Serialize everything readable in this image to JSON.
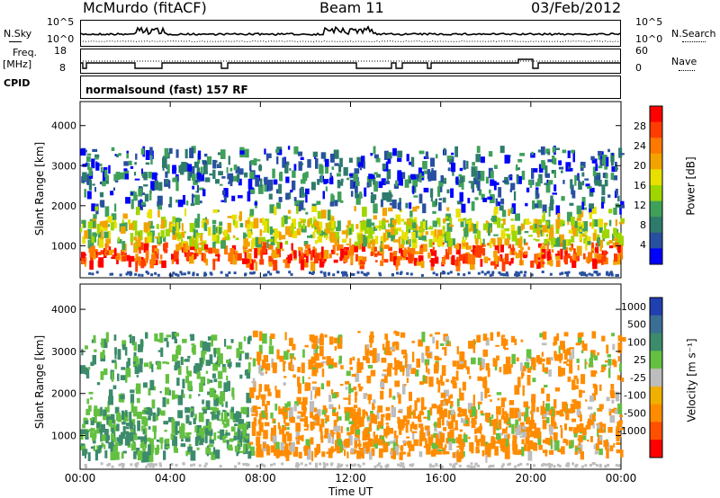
{
  "header": {
    "station": "McMurdo (fitACF)",
    "beam": "Beam 11",
    "date": "03/Feb/2012"
  },
  "noise_panel": {
    "left_label": "N.Sky",
    "right_label": "N.Search",
    "left_ticks": [
      "10^5",
      "10^0"
    ],
    "right_ticks": [
      "10^5",
      "10^0"
    ]
  },
  "freq_panel": {
    "left_label_1": "Freq.",
    "left_label_2": "[MHz]",
    "right_label": "Nave",
    "left_ticks": [
      "18",
      "8"
    ],
    "right_ticks": [
      "60",
      "0"
    ]
  },
  "cpid": {
    "label": "CPID",
    "text": "normalsound (fast) 157 RF"
  },
  "chart_data": [
    {
      "type": "heatmap",
      "name": "power",
      "ylabel": "Slant Range [km]",
      "yticks": [
        "4000",
        "3000",
        "2000",
        "1000"
      ],
      "ylim": [
        200,
        4600
      ],
      "xlim": [
        0,
        24
      ],
      "colorbar_label": "Power [dB]",
      "colorbar_ticks": [
        "28",
        "24",
        "20",
        "16",
        "12",
        "8",
        "4"
      ],
      "colorbar_colors": [
        "#ff0000",
        "#ff3c00",
        "#ff7800",
        "#f2a300",
        "#e8e000",
        "#9ed600",
        "#3fa05a",
        "#2e7b6c",
        "#2850a0",
        "#0000ff"
      ]
    },
    {
      "type": "heatmap",
      "name": "velocity",
      "ylabel": "Slant Range [km]",
      "yticks": [
        "4000",
        "3000",
        "2000",
        "1000"
      ],
      "ylim": [
        200,
        4600
      ],
      "xlim": [
        0,
        24
      ],
      "colorbar_label": "Velocity [m s⁻¹]",
      "colorbar_ticks": [
        "1000",
        "500",
        "100",
        "25",
        "-25",
        "-100",
        "-500",
        "-1000"
      ],
      "colorbar_colors": [
        "#2040b0",
        "#3b6e94",
        "#3c8b6c",
        "#64c040",
        "#bdbdbd",
        "#f0b000",
        "#ff8c00",
        "#ff5000",
        "#ff0000"
      ]
    }
  ],
  "xaxis": {
    "label": "Time UT",
    "ticks": [
      "00:00",
      "04:00",
      "08:00",
      "12:00",
      "16:00",
      "20:00",
      "00:00"
    ]
  }
}
